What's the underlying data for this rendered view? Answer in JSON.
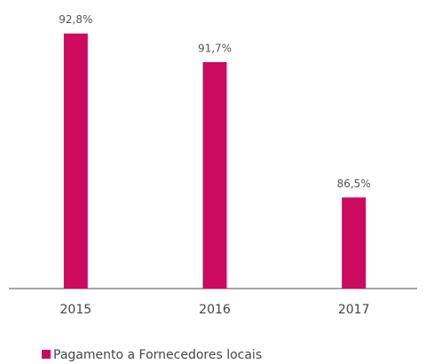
{
  "chart_data": {
    "type": "bar",
    "categories": [
      "2015",
      "2016",
      "2017"
    ],
    "series": [
      {
        "name": "Pagamento a Fornecedores locais",
        "color": "#cc0a5e",
        "values": [
          92.8,
          91.7,
          86.5
        ],
        "value_labels": [
          "92,8%",
          "91,7%",
          "86,5%"
        ]
      }
    ],
    "ylim": [
      83,
      93.2
    ]
  }
}
